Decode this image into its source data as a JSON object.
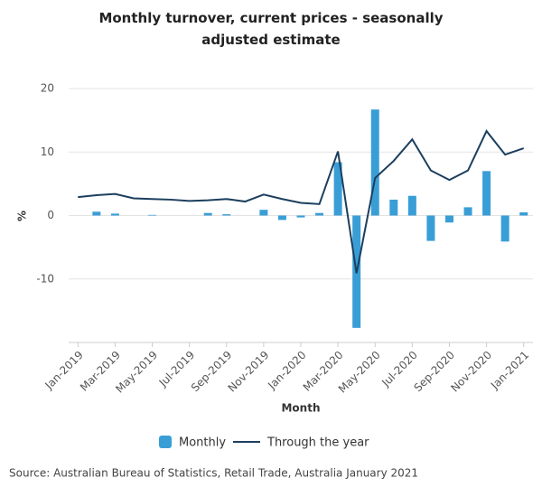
{
  "chart_data": {
    "type": "bar",
    "title": "Monthly turnover, current prices - seasonally adjusted estimate",
    "x_label": "Month",
    "y_label": "%",
    "source": "Source: Australian Bureau of Statistics, Retail Trade, Australia January 2021",
    "categories": [
      "Jan-2019",
      null,
      "Mar-2019",
      null,
      "May-2019",
      null,
      "Jul-2019",
      null,
      "Sep-2019",
      null,
      "Nov-2019",
      null,
      "Jan-2020",
      null,
      "Mar-2020",
      null,
      "May-2020",
      null,
      "Jul-2020",
      null,
      "Sep-2020",
      null,
      "Nov-2020",
      null,
      "Jan-2021"
    ],
    "series": [
      {
        "name": "Monthly",
        "type": "bar",
        "color": "#3a9ed6",
        "values": [
          0,
          0.6,
          0.3,
          0,
          0.1,
          0,
          0,
          0.4,
          0.2,
          0,
          0.9,
          -0.7,
          -0.3,
          0.4,
          8.4,
          -17.7,
          16.7,
          2.5,
          3.1,
          -4.0,
          -1.1,
          1.3,
          7.0,
          -4.1,
          0.5
        ]
      },
      {
        "name": "Through the year",
        "type": "line",
        "color": "#1c3f5e",
        "values": [
          2.9,
          3.2,
          3.4,
          2.7,
          2.6,
          2.5,
          2.3,
          2.4,
          2.6,
          2.2,
          3.3,
          2.6,
          2.0,
          1.8,
          10.1,
          -9.1,
          5.9,
          8.6,
          12.0,
          7.1,
          5.6,
          7.1,
          13.3,
          9.6,
          10.6
        ]
      }
    ],
    "ylim": [
      -20,
      20
    ],
    "yticks": [
      -10,
      0,
      10,
      20
    ],
    "grid": true
  }
}
